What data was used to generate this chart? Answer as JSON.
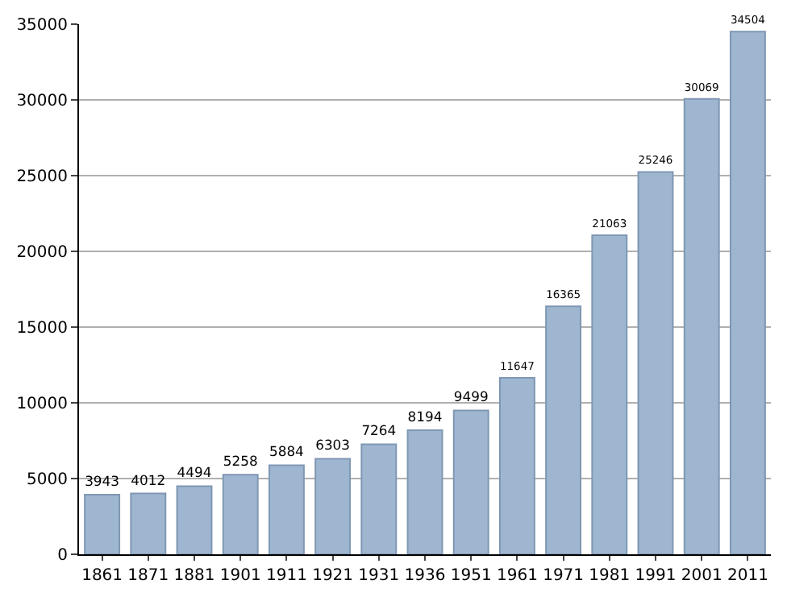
{
  "chart_data": {
    "type": "bar",
    "categories": [
      "1861",
      "1871",
      "1881",
      "1901",
      "1911",
      "1921",
      "1931",
      "1936",
      "1951",
      "1961",
      "1971",
      "1981",
      "1991",
      "2001",
      "2011"
    ],
    "values": [
      3943,
      4012,
      4494,
      5258,
      5884,
      6303,
      7264,
      8194,
      9499,
      11647,
      16365,
      21063,
      25246,
      30069,
      34504
    ],
    "color": "#9fb6d0",
    "ylim": [
      0,
      35000
    ],
    "yticks": [
      0,
      5000,
      10000,
      15000,
      20000,
      25000,
      30000,
      35000
    ],
    "grid": "y",
    "data_labels": true
  }
}
